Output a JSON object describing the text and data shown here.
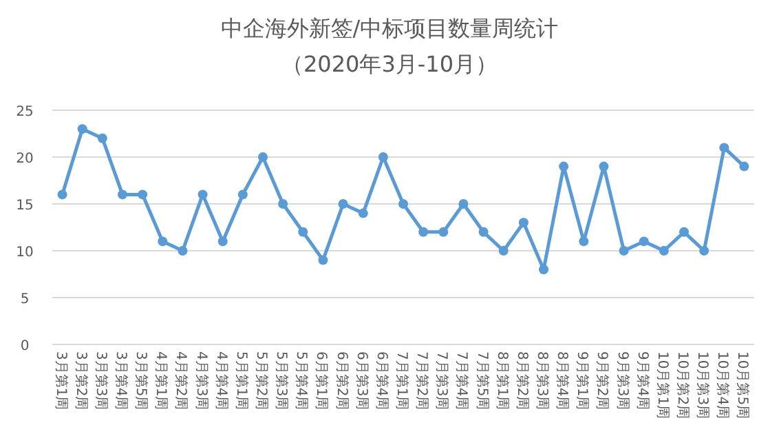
{
  "chart_data": {
    "type": "line",
    "title": "中企海外新签/中标项目数量周统计",
    "subtitle": "（2020年3月-10月）",
    "categories": [
      "3月第1周",
      "3月第2周",
      "3月第3周",
      "3月第4周",
      "3月第5周",
      "4月第1周",
      "4月第2周",
      "4月第3周",
      "4月第4周",
      "5月第1周",
      "5月第2周",
      "5月第3周",
      "5月第4周",
      "6月第1周",
      "6月第2周",
      "6月第3周",
      "6月第4周",
      "7月第1周",
      "7月第2周",
      "7月第3周",
      "7月第4周",
      "7月第5周",
      "8月第1周",
      "8月第2周",
      "8月第3周",
      "8月第4周",
      "9月第1周",
      "9月第2周",
      "9月第3周",
      "9月第4周",
      "10月第1周",
      "10月第2周",
      "10月第3周",
      "10月第4周",
      "10月第5周"
    ],
    "series": [
      {
        "color": "#5b9bd5",
        "values": [
          16,
          23,
          22,
          16,
          16,
          11,
          10,
          16,
          11,
          16,
          20,
          15,
          12,
          9,
          15,
          14,
          20,
          15,
          12,
          12,
          15,
          12,
          10,
          13,
          8,
          19,
          11,
          19,
          10,
          11,
          10,
          12,
          10,
          21,
          19
        ]
      }
    ],
    "ylim": [
      0,
      25
    ],
    "yticks": [
      0,
      5,
      10,
      15,
      20,
      25
    ],
    "grid": "y",
    "marker": "circle",
    "line_style": "solid"
  }
}
